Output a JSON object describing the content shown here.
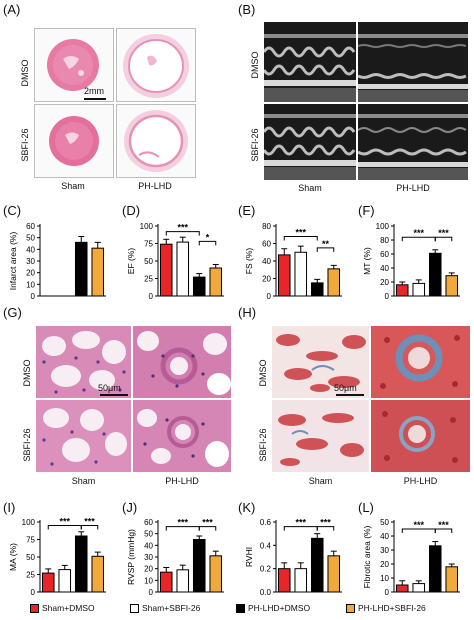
{
  "panels": {
    "A": "(A)",
    "B": "(B)",
    "C": "(C)",
    "D": "(D)",
    "E": "(E)",
    "F": "(F)",
    "G": "(G)",
    "H": "(H)",
    "I": "(I)",
    "J": "(J)",
    "K": "(K)",
    "L": "(L)"
  },
  "rows": {
    "dmso": "DMSO",
    "sbfi": "SBFI-26"
  },
  "columns": {
    "sham": "Sham",
    "phlhd": "PH-LHD"
  },
  "scalebars": {
    "heart": "2mm",
    "he": "50μm",
    "masson": "50μm"
  },
  "legend": {
    "items": [
      {
        "label": "Sham+DMSO",
        "color": "#e8262a"
      },
      {
        "label": "Sham+SBFI-26",
        "color": "#ffffff"
      },
      {
        "label": "PH-LHD+DMSO",
        "color": "#000000"
      },
      {
        "label": "PH-LHD+SBFI-26",
        "color": "#f2a93b"
      }
    ]
  },
  "colors": {
    "red": "#e8262a",
    "white": "#ffffff",
    "black": "#000000",
    "orange": "#f2a93b",
    "he_pink": "#e7a7c7",
    "masson_red": "#c93a3e",
    "masson_blue": "#6d8fb8"
  },
  "chart_data": [
    {
      "panel": "C",
      "type": "bar",
      "ylabel": "Infarct area (%)",
      "ylim": [
        0,
        60
      ],
      "yticks": [
        0,
        10,
        20,
        30,
        40,
        50,
        60
      ],
      "values": [
        0,
        0,
        46,
        41
      ],
      "errors": [
        0,
        0,
        5,
        5
      ],
      "sig": []
    },
    {
      "panel": "D",
      "type": "bar",
      "ylabel": "EF (%)",
      "ylim": [
        0,
        100
      ],
      "yticks": [
        0,
        25,
        50,
        75,
        100
      ],
      "values": [
        74,
        77,
        27,
        40
      ],
      "errors": [
        7,
        7,
        5,
        5
      ],
      "sig": [
        {
          "from": 0,
          "to": 2,
          "label": "***",
          "y": 92
        },
        {
          "from": 2,
          "to": 3,
          "label": "*",
          "y": 78
        }
      ]
    },
    {
      "panel": "E",
      "type": "bar",
      "ylabel": "FS (%)",
      "ylim": [
        0,
        80
      ],
      "yticks": [
        0,
        20,
        40,
        60,
        80
      ],
      "values": [
        47,
        50,
        15,
        31
      ],
      "errors": [
        7,
        7,
        4,
        4
      ],
      "sig": [
        {
          "from": 0,
          "to": 2,
          "label": "***",
          "y": 68
        },
        {
          "from": 2,
          "to": 3,
          "label": "**",
          "y": 55
        }
      ]
    },
    {
      "panel": "F",
      "type": "bar",
      "ylabel": "MT (%)",
      "ylim": [
        0,
        100
      ],
      "yticks": [
        0,
        20,
        40,
        60,
        80,
        100
      ],
      "values": [
        16,
        18,
        61,
        29
      ],
      "errors": [
        4,
        5,
        5,
        4
      ],
      "sig": [
        {
          "from": 0,
          "to": 2,
          "label": "***",
          "y": 84
        },
        {
          "from": 2,
          "to": 3,
          "label": "***",
          "y": 84
        }
      ]
    },
    {
      "panel": "I",
      "type": "bar",
      "ylabel": "MA (%)",
      "ylim": [
        0,
        100
      ],
      "yticks": [
        0,
        25,
        50,
        75,
        100
      ],
      "values": [
        27,
        32,
        80,
        51
      ],
      "errors": [
        6,
        6,
        6,
        6
      ],
      "sig": [
        {
          "from": 0,
          "to": 2,
          "label": "***",
          "y": 95
        },
        {
          "from": 2,
          "to": 3,
          "label": "***",
          "y": 95
        }
      ]
    },
    {
      "panel": "J",
      "type": "bar",
      "ylabel": "RVSP (mmHg)",
      "ylim": [
        0,
        60
      ],
      "yticks": [
        0,
        10,
        20,
        30,
        40,
        50,
        60
      ],
      "values": [
        17,
        19,
        45,
        31
      ],
      "errors": [
        4,
        4,
        3,
        4
      ],
      "sig": [
        {
          "from": 0,
          "to": 2,
          "label": "***",
          "y": 56
        },
        {
          "from": 2,
          "to": 3,
          "label": "***",
          "y": 56
        }
      ]
    },
    {
      "panel": "K",
      "type": "bar",
      "ylabel": "RVHI",
      "ylim": [
        0,
        0.6
      ],
      "yticks": [
        0,
        0.2,
        0.4,
        0.6
      ],
      "ytick_labels": [
        "0.0",
        "0.2",
        "0.4",
        "0.6"
      ],
      "values": [
        0.2,
        0.2,
        0.46,
        0.31
      ],
      "errors": [
        0.05,
        0.05,
        0.04,
        0.04
      ],
      "sig": [
        {
          "from": 0,
          "to": 2,
          "label": "***",
          "y": 0.56
        },
        {
          "from": 2,
          "to": 3,
          "label": "***",
          "y": 0.56
        }
      ]
    },
    {
      "panel": "L",
      "type": "bar",
      "ylabel": "Fibrotic area (%)",
      "ylim": [
        0,
        50
      ],
      "yticks": [
        0,
        10,
        20,
        30,
        40,
        50
      ],
      "values": [
        5,
        6,
        33,
        18
      ],
      "errors": [
        3,
        2,
        3,
        2
      ],
      "sig": [
        {
          "from": 0,
          "to": 2,
          "label": "***",
          "y": 45
        },
        {
          "from": 2,
          "to": 3,
          "label": "***",
          "y": 45
        }
      ]
    }
  ]
}
